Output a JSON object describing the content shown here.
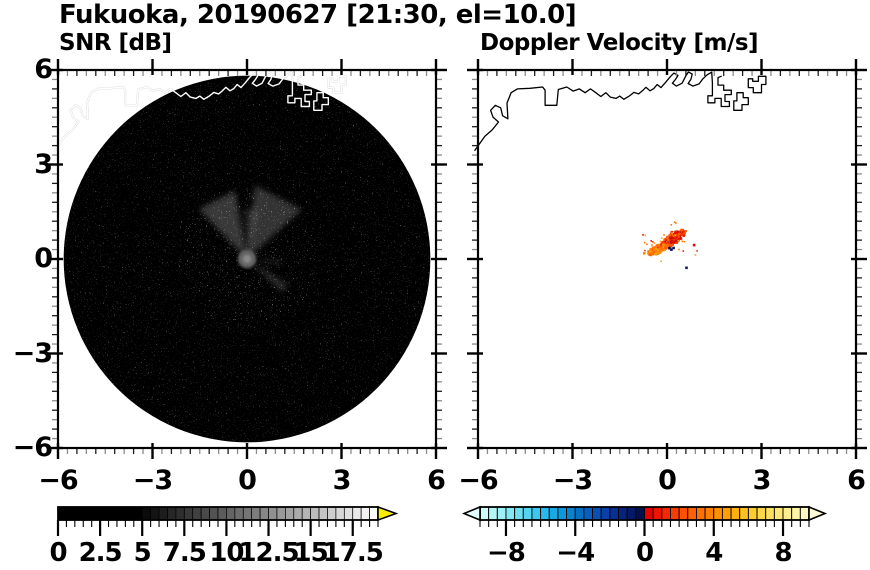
{
  "header": {
    "title": "Fukuoka, 20190627 [21:30, el=10.0]"
  },
  "panels": {
    "left": {
      "subtitle": "SNR [dB]"
    },
    "right": {
      "subtitle": "Doppler Velocity [m/s]"
    }
  },
  "chart_data": {
    "type": "heatmap",
    "figure_title": "Fukuoka, 20190627 [21:30, el=10.0]",
    "station": "Fukuoka",
    "date": "20190627",
    "time": "21:30",
    "elevation_deg": 10.0,
    "axes": {
      "xlim": [
        -6,
        6
      ],
      "ylim": [
        -6,
        6
      ],
      "x_tick_values": [
        -6,
        -3,
        0,
        3,
        6
      ],
      "x_tick_labels": [
        "−6",
        "−3",
        "0",
        "3",
        "6"
      ],
      "y_tick_values": [
        6,
        3,
        0,
        -3,
        -6
      ],
      "y_tick_labels": [
        "6",
        "3",
        "0",
        "−3",
        "−6"
      ],
      "minor_tick_step": 0.3,
      "grid": false
    },
    "panels": [
      {
        "name": "snr",
        "title": "SNR [dB]",
        "scan_disc": {
          "center": [
            0,
            0
          ],
          "radius": 5.82,
          "background_color": "#000000",
          "noise": "faint gray speckle"
        },
        "echo": {
          "description": "gray starburst echo at radar origin",
          "center": [
            0,
            0
          ],
          "core_radius": 0.29,
          "core_color": "#646464",
          "fan_lobes": [
            {
              "angle_deg": -27,
              "spread_deg": 17,
              "length": 2.2,
              "opacity": 0.3
            },
            {
              "angle_deg": 27,
              "spread_deg": 21,
              "length": 2.35,
              "opacity": 0.28
            },
            {
              "angle_deg": 5,
              "spread_deg": 8,
              "length": 1.6,
              "opacity": 0.18
            },
            {
              "angle_deg": 128,
              "spread_deg": 6,
              "length": 1.55,
              "opacity": 0.22
            },
            {
              "angle_deg": 95,
              "spread_deg": 5,
              "length": 1.1,
              "opacity": 0.14
            }
          ]
        },
        "colorbar": {
          "min": 0,
          "max": 19,
          "cell_step": 0.5,
          "tick_values": [
            0,
            2.5,
            5,
            7.5,
            10,
            12.5,
            15,
            17.5
          ],
          "tick_labels": [
            "0",
            "2.5",
            "5",
            "7.5",
            "10",
            "12.5",
            "15",
            "17.5"
          ],
          "style": "grayscale black to white",
          "over_arrow_color": "#f8ec00"
        }
      },
      {
        "name": "doppler",
        "title": "Doppler Velocity [m/s]",
        "background_color": "#ffffff",
        "echo": {
          "description": "small orange-red echo streak near origin, positive velocities with few negative pixels",
          "clusters": [
            {
              "center": [
                0.18,
                0.62
              ],
              "rx": 0.5,
              "ry": 0.17,
              "rot_deg": 35,
              "n": 240,
              "palette": [
                "#e81400",
                "#f23000",
                "#fa4600",
                "#ff5a00",
                "#d01000",
                "#b00c00",
                "#ff6a00"
              ]
            },
            {
              "center": [
                -0.3,
                0.3
              ],
              "rx": 0.36,
              "ry": 0.13,
              "rot_deg": 25,
              "n": 130,
              "palette": [
                "#ff7800",
                "#ff8c00",
                "#fa5f00",
                "#ff9e1a",
                "#ff6a00"
              ]
            }
          ],
          "spots": [
            {
              "xy": [
                0.08,
                0.34
              ],
              "color": "#101a66"
            },
            {
              "xy": [
                0.14,
                0.3
              ],
              "color": "#0a1250"
            },
            {
              "xy": [
                0.21,
                0.35
              ],
              "color": "#101a66"
            },
            {
              "xy": [
                0.62,
                -0.28
              ],
              "color": "#101a66"
            },
            {
              "xy": [
                0.86,
                0.44
              ],
              "color": "#e01000"
            },
            {
              "xy": [
                -0.72,
                0.18
              ],
              "color": "#ff8c00"
            }
          ],
          "scatter_n": 34
        },
        "colorbar": {
          "min": -9.5,
          "max": 9.5,
          "cell_step": 0.5,
          "tick_values": [
            -8,
            -4,
            0,
            4,
            8
          ],
          "tick_labels": [
            "−8",
            "−4",
            "0",
            "4",
            "8"
          ],
          "style": "pale cyan - blue - dark navy - red - orange - pale yellow",
          "under_arrow_color": "#e2fdfd",
          "over_arrow_color": "#fffbd8",
          "cool_colors": [
            "#ccfcfc",
            "#b4f6f8",
            "#9cf0f6",
            "#84e8f4",
            "#6cdff2",
            "#54d4f0",
            "#3cc8ee",
            "#28baea",
            "#18aae4",
            "#0c98dc",
            "#0684d0",
            "#0470c4",
            "#0660bc",
            "#0850b4",
            "#0a40a8",
            "#083093",
            "#06247e",
            "#041a66",
            "#02104e"
          ],
          "warm_colors": [
            "#e60000",
            "#ee1400",
            "#f42800",
            "#fa3c00",
            "#ff5000",
            "#ff6000",
            "#ff7000",
            "#ff8000",
            "#ff9000",
            "#ffa000",
            "#ffb010",
            "#ffc020",
            "#ffcc30",
            "#ffd848",
            "#ffe060",
            "#ffe878",
            "#ffee90",
            "#fff4a8",
            "#fff8c0"
          ]
        }
      }
    ],
    "coastline": {
      "color_left_panel": "#ffffff",
      "color_right_panel": "#000000",
      "main": [
        [
          -6.1,
          3.45
        ],
        [
          -5.78,
          3.9
        ],
        [
          -5.55,
          4.1
        ],
        [
          -5.35,
          4.35
        ],
        [
          -5.52,
          4.5
        ],
        [
          -5.6,
          4.72
        ],
        [
          -5.45,
          4.88
        ],
        [
          -5.28,
          4.8
        ],
        [
          -5.22,
          4.55
        ],
        [
          -5.05,
          4.45
        ],
        [
          -5.08,
          4.95
        ],
        [
          -4.95,
          5.28
        ],
        [
          -4.75,
          5.4
        ],
        [
          -4.35,
          5.42
        ],
        [
          -3.95,
          5.46
        ],
        [
          -3.87,
          5.36
        ],
        [
          -3.87,
          4.88
        ],
        [
          -3.5,
          4.88
        ],
        [
          -3.45,
          5.38
        ],
        [
          -3.18,
          5.46
        ],
        [
          -2.98,
          5.33
        ],
        [
          -2.78,
          5.4
        ],
        [
          -2.6,
          5.28
        ],
        [
          -2.43,
          5.4
        ],
        [
          -2.26,
          5.28
        ],
        [
          -2.1,
          5.16
        ],
        [
          -1.94,
          5.28
        ],
        [
          -1.8,
          5.14
        ],
        [
          -1.62,
          5.1
        ],
        [
          -1.5,
          5.17
        ],
        [
          -1.37,
          5.07
        ],
        [
          -1.2,
          5.17
        ],
        [
          -1.05,
          5.29
        ],
        [
          -0.9,
          5.24
        ],
        [
          -0.78,
          5.34
        ],
        [
          -0.67,
          5.45
        ],
        [
          -0.54,
          5.34
        ],
        [
          -0.42,
          5.41
        ],
        [
          -0.31,
          5.54
        ],
        [
          -0.19,
          5.44
        ],
        [
          -0.05,
          5.6
        ],
        [
          0.1,
          5.78
        ],
        [
          0.22,
          5.9
        ],
        [
          0.35,
          5.83
        ],
        [
          0.27,
          5.7
        ],
        [
          0.17,
          5.58
        ],
        [
          0.3,
          5.49
        ],
        [
          0.48,
          5.58
        ],
        [
          0.58,
          5.78
        ],
        [
          0.68,
          5.94
        ],
        [
          0.8,
          5.87
        ],
        [
          0.76,
          5.7
        ],
        [
          0.67,
          5.57
        ],
        [
          0.82,
          5.49
        ],
        [
          1.02,
          5.56
        ],
        [
          1.14,
          5.72
        ],
        [
          1.28,
          5.85
        ],
        [
          1.42,
          5.93
        ]
      ],
      "port_a": [
        [
          1.42,
          5.93
        ],
        [
          1.44,
          5.6
        ],
        [
          1.44,
          5.18
        ],
        [
          1.3,
          5.18
        ],
        [
          1.3,
          4.96
        ],
        [
          1.52,
          4.96
        ],
        [
          1.52,
          5.1
        ],
        [
          1.72,
          5.1
        ],
        [
          1.72,
          4.84
        ],
        [
          1.98,
          4.84
        ],
        [
          1.98,
          5.0
        ],
        [
          1.84,
          5.0
        ],
        [
          1.84,
          5.22
        ],
        [
          2.04,
          5.22
        ],
        [
          2.04,
          5.36
        ],
        [
          1.8,
          5.36
        ],
        [
          1.8,
          5.52
        ],
        [
          1.62,
          5.52
        ],
        [
          1.62,
          5.76
        ],
        [
          1.72,
          5.8
        ]
      ],
      "port_b": [
        [
          2.12,
          5.02
        ],
        [
          2.12,
          4.72
        ],
        [
          2.38,
          4.72
        ],
        [
          2.38,
          4.9
        ],
        [
          2.58,
          4.9
        ],
        [
          2.58,
          5.12
        ],
        [
          2.42,
          5.12
        ],
        [
          2.42,
          5.28
        ],
        [
          2.22,
          5.28
        ],
        [
          2.22,
          5.02
        ],
        [
          2.12,
          5.02
        ]
      ],
      "port_c": [
        [
          2.58,
          5.72
        ],
        [
          2.58,
          5.44
        ],
        [
          2.74,
          5.44
        ],
        [
          2.74,
          5.28
        ],
        [
          3.0,
          5.28
        ],
        [
          3.0,
          5.54
        ],
        [
          3.14,
          5.54
        ],
        [
          3.14,
          5.8
        ],
        [
          2.9,
          5.8
        ],
        [
          2.9,
          5.64
        ],
        [
          2.72,
          5.64
        ],
        [
          2.72,
          5.72
        ],
        [
          2.58,
          5.72
        ]
      ]
    }
  }
}
